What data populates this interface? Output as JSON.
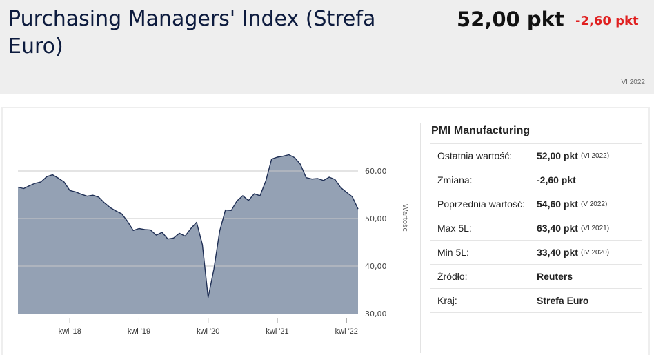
{
  "header": {
    "title": "Purchasing Managers' Index (Strefa Euro)",
    "value": "52,00 pkt",
    "change": "-2,60 pkt",
    "date": "VI 2022"
  },
  "colors": {
    "title": "#0d1b3e",
    "change_negative": "#e02020",
    "area_fill": "#94a1b4",
    "line": "#1f2f55",
    "grid": "#c8c8c8"
  },
  "chart_data": {
    "type": "area",
    "title": "",
    "xlabel": "",
    "ylabel": "Wartość",
    "ylim": [
      30,
      63.4
    ],
    "y_ticks": [
      "30,00",
      "40,00",
      "50,00",
      "60,00"
    ],
    "y_tick_values": [
      30,
      40,
      50,
      60
    ],
    "x_ticks": [
      "kwi '18",
      "kwi '19",
      "kwi '20",
      "kwi '21",
      "kwi '22"
    ],
    "x_tick_dates": [
      "2018-04",
      "2019-04",
      "2020-04",
      "2021-04",
      "2022-04"
    ],
    "grid": true,
    "series": [
      {
        "name": "",
        "x": [
          "2017-07",
          "2017-08",
          "2017-09",
          "2017-10",
          "2017-11",
          "2017-12",
          "2018-01",
          "2018-02",
          "2018-03",
          "2018-04",
          "2018-05",
          "2018-06",
          "2018-07",
          "2018-08",
          "2018-09",
          "2018-10",
          "2018-11",
          "2018-12",
          "2019-01",
          "2019-02",
          "2019-03",
          "2019-04",
          "2019-05",
          "2019-06",
          "2019-07",
          "2019-08",
          "2019-09",
          "2019-10",
          "2019-11",
          "2019-12",
          "2020-01",
          "2020-02",
          "2020-03",
          "2020-04",
          "2020-05",
          "2020-06",
          "2020-07",
          "2020-08",
          "2020-09",
          "2020-10",
          "2020-11",
          "2020-12",
          "2021-01",
          "2021-02",
          "2021-03",
          "2021-04",
          "2021-05",
          "2021-06",
          "2021-07",
          "2021-08",
          "2021-09",
          "2021-10",
          "2021-11",
          "2021-12",
          "2022-01",
          "2022-02",
          "2022-03",
          "2022-04",
          "2022-05",
          "2022-06"
        ],
        "values": [
          56.6,
          56.3,
          56.9,
          57.4,
          57.7,
          58.8,
          59.2,
          58.5,
          57.7,
          55.9,
          55.6,
          55.1,
          54.7,
          54.9,
          54.5,
          53.3,
          52.3,
          51.6,
          51.0,
          49.4,
          47.5,
          47.9,
          47.7,
          47.6,
          46.5,
          47.1,
          45.7,
          45.9,
          46.9,
          46.3,
          47.9,
          49.2,
          44.5,
          33.4,
          39.4,
          47.4,
          51.8,
          51.7,
          53.7,
          54.8,
          53.8,
          55.2,
          54.8,
          57.9,
          62.5,
          62.9,
          63.1,
          63.4,
          62.8,
          61.4,
          58.6,
          58.3,
          58.4,
          58.0,
          58.7,
          58.2,
          56.5,
          55.5,
          54.6,
          52.0
        ]
      }
    ]
  },
  "info": {
    "title": "PMI Manufacturing",
    "rows": [
      {
        "label": "Ostatnia wartość:",
        "value": "52,00 pkt",
        "sub": "(VI 2022)"
      },
      {
        "label": "Zmiana:",
        "value": "-2,60 pkt",
        "sub": ""
      },
      {
        "label": "Poprzednia wartość:",
        "value": "54,60 pkt",
        "sub": "(V 2022)"
      },
      {
        "label": "Max 5L:",
        "value": "63,40 pkt",
        "sub": "(VI 2021)"
      },
      {
        "label": "Min 5L:",
        "value": "33,40 pkt",
        "sub": "(IV 2020)"
      },
      {
        "label": "Źródło:",
        "value": "Reuters",
        "sub": ""
      },
      {
        "label": "Kraj:",
        "value": "Strefa Euro",
        "sub": ""
      }
    ]
  }
}
